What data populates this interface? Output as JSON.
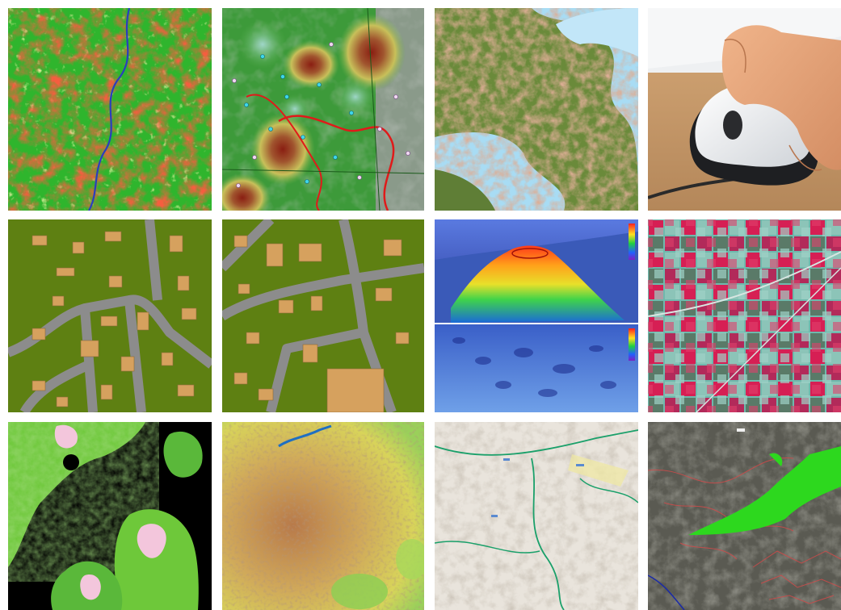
{
  "grid": {
    "rows": 3,
    "columns": 4,
    "tiles": [
      {
        "name": "land-cover-classification",
        "palette": [
          "#ea1d0e",
          "#2fb52d",
          "#f4f06a",
          "#2a3dbf"
        ]
      },
      {
        "name": "contour-heatmap-terrain",
        "palette": [
          "#3d9a3a",
          "#8fc25a",
          "#a0542e",
          "#3fc6e0"
        ]
      },
      {
        "name": "satellite-coastline",
        "palette": [
          "#a8dcf4",
          "#6a8a3a",
          "#b86a4a"
        ]
      },
      {
        "name": "hand-on-computer-mouse",
        "palette": [
          "#f2f2f2",
          "#e4a47a",
          "#c79a66"
        ]
      },
      {
        "name": "building-footprints-a",
        "palette": [
          "#5e8012",
          "#8c8c8c",
          "#d6a15e"
        ]
      },
      {
        "name": "building-footprints-b",
        "palette": [
          "#5e8012",
          "#8c8c8c",
          "#d6a15e"
        ]
      },
      {
        "name": "3d-bathymetry",
        "palette": [
          "#3a5fc8",
          "#ff7a1a",
          "#3fd34a",
          "#1a2a8a"
        ]
      },
      {
        "name": "infrared-agricultural-fields",
        "palette": [
          "#d61f54",
          "#6fb9ad",
          "#5a7a68"
        ]
      },
      {
        "name": "satellite-vegetation-lakes",
        "palette": [
          "#000000",
          "#6ec83a",
          "#f3c6dc"
        ]
      },
      {
        "name": "elevation-city-overlay",
        "palette": [
          "#c9905a",
          "#d8d45a",
          "#8fcf54",
          "#1f6fc2"
        ]
      },
      {
        "name": "topographic-hillshade-map",
        "palette": [
          "#e9e4dc",
          "#a89c8a",
          "#1aa06a"
        ]
      },
      {
        "name": "terrain-with-roads-and-forest",
        "palette": [
          "#5a5a52",
          "#2dd81e",
          "#d24a4a",
          "#1a2aa8"
        ]
      }
    ]
  }
}
